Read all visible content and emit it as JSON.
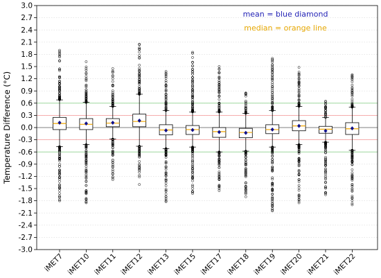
{
  "chart_data": {
    "type": "box",
    "title": "",
    "xlabel": "",
    "ylabel": "Temperature Difference (°C)",
    "ylim": [
      -3.0,
      3.0
    ],
    "yticks": [
      "-3.0",
      "-2.7",
      "-2.4",
      "-2.1",
      "-1.8",
      "-1.5",
      "-1.2",
      "-0.9",
      "-0.6",
      "-0.3",
      "0.0",
      "0.3",
      "0.6",
      "0.9",
      "1.2",
      "1.5",
      "1.8",
      "2.1",
      "2.4",
      "2.7",
      "3.0"
    ],
    "grid": true,
    "reference_lines": [
      {
        "y": 0.0,
        "color": "#808080"
      },
      {
        "y": 0.3,
        "color": "#f5a3a3"
      },
      {
        "y": -0.3,
        "color": "#f5a3a3"
      },
      {
        "y": 0.6,
        "color": "#8fd18f"
      },
      {
        "y": -0.6,
        "color": "#8fd18f"
      }
    ],
    "legend_notes": [
      {
        "text": "mean = blue diamond",
        "color": "#1f1fb4"
      },
      {
        "text": "median = orange line",
        "color": "#e6a700"
      }
    ],
    "legend_placement": "top-right",
    "categories": [
      "iMET7",
      "iMET10",
      "iMET11",
      "iMET12",
      "iMET13",
      "iMET15",
      "iMET17",
      "iMET18",
      "iMET19",
      "iMET20",
      "iMET21",
      "iMET22"
    ],
    "boxes": [
      {
        "q1": -0.05,
        "median": 0.1,
        "q3": 0.25,
        "whisker_low": -0.47,
        "whisker_high": 0.68,
        "mean": 0.12,
        "outlier_min": -1.8,
        "outlier_max": 1.9
      },
      {
        "q1": -0.05,
        "median": 0.08,
        "q3": 0.22,
        "whisker_low": -0.42,
        "whisker_high": 0.62,
        "mean": 0.1,
        "outlier_min": -1.85,
        "outlier_max": 1.62
      },
      {
        "q1": 0.02,
        "median": 0.11,
        "q3": 0.22,
        "whisker_low": -0.28,
        "whisker_high": 0.52,
        "mean": 0.12,
        "outlier_min": -1.28,
        "outlier_max": 1.45
      },
      {
        "q1": 0.02,
        "median": 0.15,
        "q3": 0.33,
        "whisker_low": -0.46,
        "whisker_high": 0.82,
        "mean": 0.17,
        "outlier_min": -1.4,
        "outlier_max": 2.05
      },
      {
        "q1": -0.18,
        "median": -0.06,
        "q3": 0.07,
        "whisker_low": -0.52,
        "whisker_high": 0.42,
        "mean": -0.07,
        "outlier_min": -1.82,
        "outlier_max": 1.38
      },
      {
        "q1": -0.17,
        "median": -0.05,
        "q3": 0.05,
        "whisker_low": -0.48,
        "whisker_high": 0.38,
        "mean": -0.06,
        "outlier_min": -1.62,
        "outlier_max": 1.85
      },
      {
        "q1": -0.24,
        "median": -0.1,
        "q3": 0.0,
        "whisker_low": -0.6,
        "whisker_high": 0.38,
        "mean": -0.11,
        "outlier_min": -1.55,
        "outlier_max": 1.5
      },
      {
        "q1": -0.25,
        "median": -0.12,
        "q3": -0.02,
        "whisker_low": -0.58,
        "whisker_high": 0.35,
        "mean": -0.13,
        "outlier_min": -1.7,
        "outlier_max": 0.85
      },
      {
        "q1": -0.15,
        "median": -0.05,
        "q3": 0.07,
        "whisker_low": -0.48,
        "whisker_high": 0.42,
        "mean": -0.05,
        "outlier_min": -2.05,
        "outlier_max": 1.7
      },
      {
        "q1": -0.08,
        "median": 0.04,
        "q3": 0.17,
        "whisker_low": -0.42,
        "whisker_high": 0.52,
        "mean": 0.04,
        "outlier_min": -1.85,
        "outlier_max": 1.48
      },
      {
        "q1": -0.14,
        "median": -0.04,
        "q3": 0.03,
        "whisker_low": -0.36,
        "whisker_high": 0.25,
        "mean": -0.08,
        "outlier_min": -1.65,
        "outlier_max": 0.65
      },
      {
        "q1": -0.17,
        "median": -0.03,
        "q3": 0.12,
        "whisker_low": -0.56,
        "whisker_high": 0.5,
        "mean": -0.02,
        "outlier_min": -1.9,
        "outlier_max": 1.3
      }
    ]
  }
}
